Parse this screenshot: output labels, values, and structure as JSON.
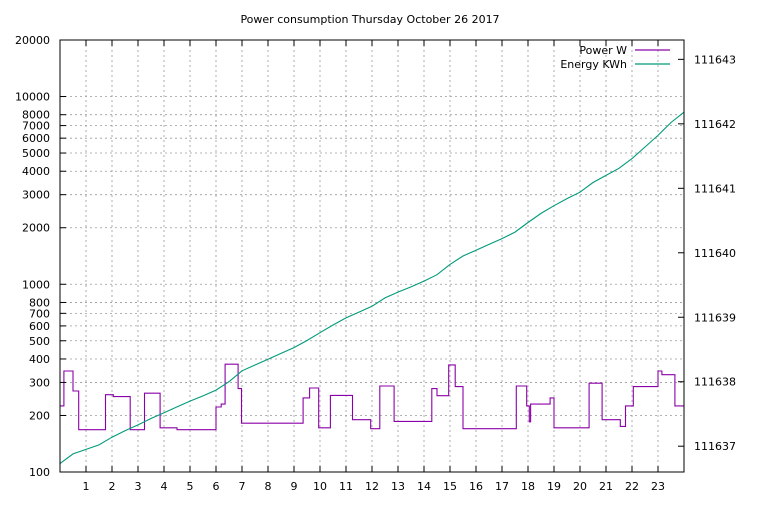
{
  "chart_data": {
    "type": "line",
    "title": "Power consumption Thursday October 26 2017",
    "xlabel": "",
    "ylabel": "",
    "x_ticks": [
      1,
      2,
      3,
      4,
      5,
      6,
      7,
      8,
      9,
      10,
      11,
      12,
      13,
      14,
      15,
      16,
      17,
      18,
      19,
      20,
      21,
      22,
      23
    ],
    "xlim": [
      0,
      24
    ],
    "y_scale": "log",
    "ylim": [
      100,
      20000
    ],
    "y_ticks": [
      100,
      200,
      300,
      400,
      500,
      600,
      700,
      800,
      1000,
      2000,
      3000,
      4000,
      5000,
      6000,
      7000,
      8000,
      10000,
      20000
    ],
    "y2lim": [
      111636.6,
      111643.3
    ],
    "y2_ticks": [
      111637,
      111638,
      111639,
      111640,
      111641,
      111642,
      111643
    ],
    "grid": true,
    "legend_position": "top-right",
    "series": [
      {
        "name": "Power W",
        "axis": "left",
        "color": "#8b00a8",
        "step": true,
        "points": [
          [
            0,
            225
          ],
          [
            0.15,
            345
          ],
          [
            0.5,
            270
          ],
          [
            0.72,
            168
          ],
          [
            1.75,
            258
          ],
          [
            2.05,
            252
          ],
          [
            2.7,
            168
          ],
          [
            3.25,
            263
          ],
          [
            3.85,
            172
          ],
          [
            4.5,
            168
          ],
          [
            6.0,
            222
          ],
          [
            6.2,
            230
          ],
          [
            6.35,
            375
          ],
          [
            6.85,
            278
          ],
          [
            6.98,
            182
          ],
          [
            9.35,
            248
          ],
          [
            9.6,
            280
          ],
          [
            9.95,
            172
          ],
          [
            10.4,
            256
          ],
          [
            11.25,
            190
          ],
          [
            11.95,
            170
          ],
          [
            12.3,
            287
          ],
          [
            12.85,
            186
          ],
          [
            14.3,
            278
          ],
          [
            14.5,
            255
          ],
          [
            14.95,
            372
          ],
          [
            15.2,
            285
          ],
          [
            15.5,
            170
          ],
          [
            17.55,
            287
          ],
          [
            17.95,
            225
          ],
          [
            18.05,
            185
          ],
          [
            18.1,
            230
          ],
          [
            18.85,
            248
          ],
          [
            19.0,
            172
          ],
          [
            20.35,
            297
          ],
          [
            20.85,
            190
          ],
          [
            21.55,
            175
          ],
          [
            21.75,
            225
          ],
          [
            22.05,
            285
          ],
          [
            23.0,
            345
          ],
          [
            23.15,
            330
          ],
          [
            23.65,
            225
          ],
          [
            24,
            225
          ]
        ]
      },
      {
        "name": "Energy KWh",
        "axis": "right",
        "color": "#009a7a",
        "step": false,
        "points": [
          [
            0,
            111636.73
          ],
          [
            0.5,
            111636.88
          ],
          [
            1.0,
            111636.95
          ],
          [
            1.5,
            111637.02
          ],
          [
            2.0,
            111637.14
          ],
          [
            2.5,
            111637.24
          ],
          [
            3.0,
            111637.33
          ],
          [
            3.5,
            111637.43
          ],
          [
            4.0,
            111637.52
          ],
          [
            4.5,
            111637.61
          ],
          [
            5.0,
            111637.7
          ],
          [
            5.5,
            111637.78
          ],
          [
            6.0,
            111637.87
          ],
          [
            6.5,
            111638.0
          ],
          [
            7.0,
            111638.17
          ],
          [
            7.5,
            111638.26
          ],
          [
            8.0,
            111638.35
          ],
          [
            8.5,
            111638.44
          ],
          [
            9.0,
            111638.53
          ],
          [
            9.5,
            111638.64
          ],
          [
            10.0,
            111638.76
          ],
          [
            10.5,
            111638.88
          ],
          [
            11.0,
            111638.99
          ],
          [
            11.5,
            111639.08
          ],
          [
            12.0,
            111639.17
          ],
          [
            12.5,
            111639.3
          ],
          [
            13.0,
            111639.39
          ],
          [
            13.5,
            111639.47
          ],
          [
            14.0,
            111639.56
          ],
          [
            14.5,
            111639.66
          ],
          [
            15.0,
            111639.82
          ],
          [
            15.5,
            111639.95
          ],
          [
            16.0,
            111640.04
          ],
          [
            16.5,
            111640.13
          ],
          [
            17.0,
            111640.22
          ],
          [
            17.5,
            111640.32
          ],
          [
            18.0,
            111640.47
          ],
          [
            18.5,
            111640.61
          ],
          [
            19.0,
            111640.73
          ],
          [
            19.5,
            111640.84
          ],
          [
            20.0,
            111640.94
          ],
          [
            20.5,
            111641.09
          ],
          [
            21.0,
            111641.2
          ],
          [
            21.5,
            111641.31
          ],
          [
            22.0,
            111641.46
          ],
          [
            22.5,
            111641.64
          ],
          [
            23.0,
            111641.82
          ],
          [
            23.5,
            111642.02
          ],
          [
            24.0,
            111642.18
          ]
        ]
      }
    ]
  }
}
